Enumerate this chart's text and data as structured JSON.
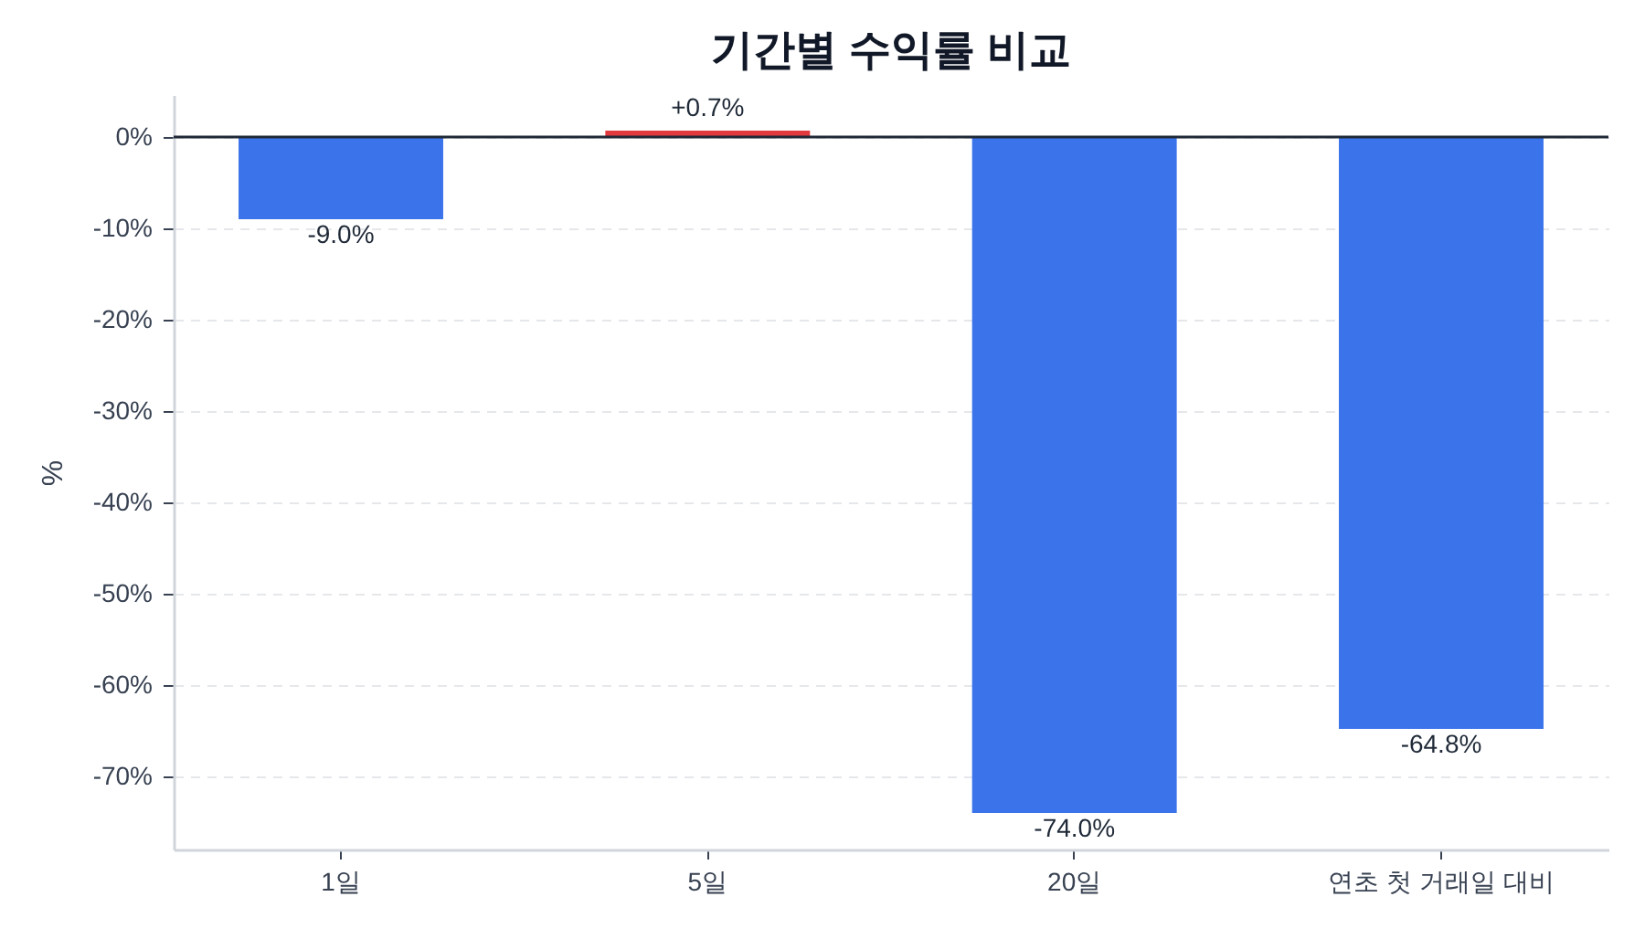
{
  "chart_data": {
    "type": "bar",
    "title": "기간별 수익률 비교",
    "ylabel": "%",
    "categories": [
      "1일",
      "5일",
      "20일",
      "연초 첫 거래일 대비"
    ],
    "values": [
      -9.0,
      0.7,
      -74.0,
      -64.8
    ],
    "colors": [
      "#3b73ea",
      "#e0393e",
      "#3b73ea",
      "#3b73ea"
    ],
    "value_labels": [
      "-9.0%",
      "+0.7%",
      "-74.0%",
      "-64.8%"
    ],
    "ylim": [
      -78,
      4.6
    ],
    "yticks": [
      {
        "value": 0,
        "label": "0%"
      },
      {
        "value": -10,
        "label": "-10%"
      },
      {
        "value": -20,
        "label": "-20%"
      },
      {
        "value": -30,
        "label": "-30%"
      },
      {
        "value": -40,
        "label": "-40%"
      },
      {
        "value": -50,
        "label": "-50%"
      },
      {
        "value": -60,
        "label": "-60%"
      },
      {
        "value": -70,
        "label": "-70%"
      }
    ],
    "grid": "y",
    "ref_lines": [
      {
        "axis": "y",
        "value": 0,
        "color": "#1f2937"
      }
    ]
  }
}
